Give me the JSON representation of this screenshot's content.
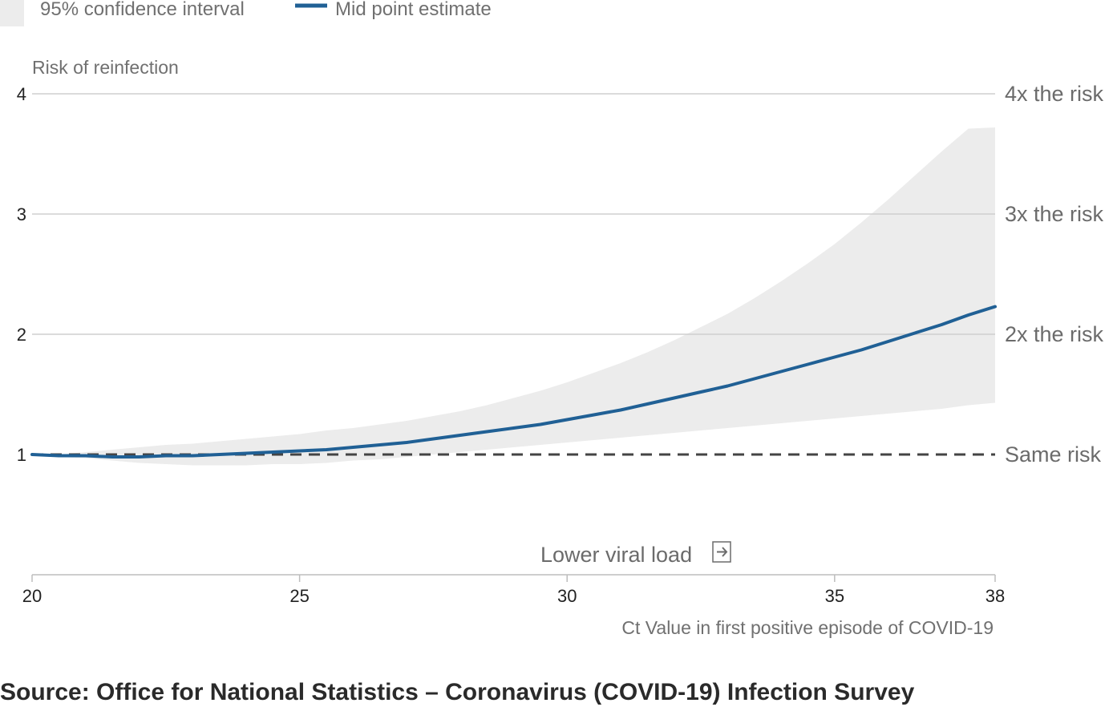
{
  "chart_data": {
    "type": "area",
    "legend": [
      {
        "name": "95% confidence interval",
        "color": "#ececec",
        "marker": "swatch"
      },
      {
        "name": "Mid point estimate",
        "color": "#206095",
        "marker": "line"
      }
    ],
    "ylabel": "Risk of reinfection",
    "xlabel": "Ct Value in first positive episode of COVID-19",
    "annotation": "Lower viral load",
    "annotation_icon": "arrow-right-icon",
    "xlim": [
      20,
      38
    ],
    "ylim": [
      0,
      4
    ],
    "x_ticks": [
      {
        "value": 20,
        "label": "20"
      },
      {
        "value": 25,
        "label": "25"
      },
      {
        "value": 30,
        "label": "30"
      },
      {
        "value": 35,
        "label": "35"
      },
      {
        "value": 38,
        "label": "38"
      }
    ],
    "y_ticks": [
      {
        "value": 1,
        "label": "1"
      },
      {
        "value": 2,
        "label": "2"
      },
      {
        "value": 3,
        "label": "3"
      },
      {
        "value": 4,
        "label": "4"
      }
    ],
    "gridlines": [
      {
        "value": 4,
        "label": "4x the risk",
        "style": "solid"
      },
      {
        "value": 3,
        "label": "3x the risk",
        "style": "solid"
      },
      {
        "value": 2,
        "label": "2x the risk",
        "style": "solid"
      },
      {
        "value": 1,
        "label": "Same risk",
        "style": "dashed"
      }
    ],
    "series": [
      {
        "name": "Mid point estimate",
        "color": "#206095",
        "x": [
          20,
          20.5,
          21,
          21.5,
          22,
          22.5,
          23,
          23.5,
          24,
          24.5,
          25,
          25.5,
          26,
          26.5,
          27,
          27.5,
          28,
          28.5,
          29,
          29.5,
          30,
          30.5,
          31,
          31.5,
          32,
          32.5,
          33,
          33.5,
          34,
          34.5,
          35,
          35.5,
          36,
          36.5,
          37,
          37.5,
          38
        ],
        "y": [
          1.0,
          0.99,
          0.99,
          0.98,
          0.98,
          0.99,
          0.99,
          1.0,
          1.01,
          1.02,
          1.03,
          1.04,
          1.06,
          1.08,
          1.1,
          1.13,
          1.16,
          1.19,
          1.22,
          1.25,
          1.29,
          1.33,
          1.37,
          1.42,
          1.47,
          1.52,
          1.57,
          1.63,
          1.69,
          1.75,
          1.81,
          1.87,
          1.94,
          2.01,
          2.08,
          2.16,
          2.23
        ]
      },
      {
        "name": "95% confidence interval",
        "color": "#ececec",
        "x": [
          20,
          20.5,
          21,
          21.5,
          22,
          22.5,
          23,
          23.5,
          24,
          24.5,
          25,
          25.5,
          26,
          26.5,
          27,
          27.5,
          28,
          28.5,
          29,
          29.5,
          30,
          30.5,
          31,
          31.5,
          32,
          32.5,
          33,
          33.5,
          34,
          34.5,
          35,
          35.5,
          36,
          36.5,
          37,
          37.5,
          38
        ],
        "lower": [
          1.0,
          0.98,
          0.97,
          0.95,
          0.93,
          0.92,
          0.91,
          0.91,
          0.91,
          0.92,
          0.92,
          0.93,
          0.95,
          0.96,
          0.98,
          1.0,
          1.02,
          1.04,
          1.06,
          1.08,
          1.1,
          1.12,
          1.14,
          1.16,
          1.18,
          1.2,
          1.22,
          1.24,
          1.26,
          1.28,
          1.3,
          1.32,
          1.34,
          1.36,
          1.38,
          1.41,
          1.43
        ],
        "upper": [
          1.0,
          1.0,
          1.02,
          1.04,
          1.06,
          1.08,
          1.09,
          1.11,
          1.13,
          1.15,
          1.17,
          1.2,
          1.22,
          1.25,
          1.28,
          1.32,
          1.36,
          1.41,
          1.47,
          1.53,
          1.6,
          1.68,
          1.76,
          1.85,
          1.95,
          2.06,
          2.17,
          2.3,
          2.44,
          2.59,
          2.75,
          2.93,
          3.12,
          3.32,
          3.52,
          3.71,
          3.72
        ]
      }
    ]
  },
  "source": "Source: Office for National Statistics – Coronavirus (COVID-19) Infection Survey"
}
